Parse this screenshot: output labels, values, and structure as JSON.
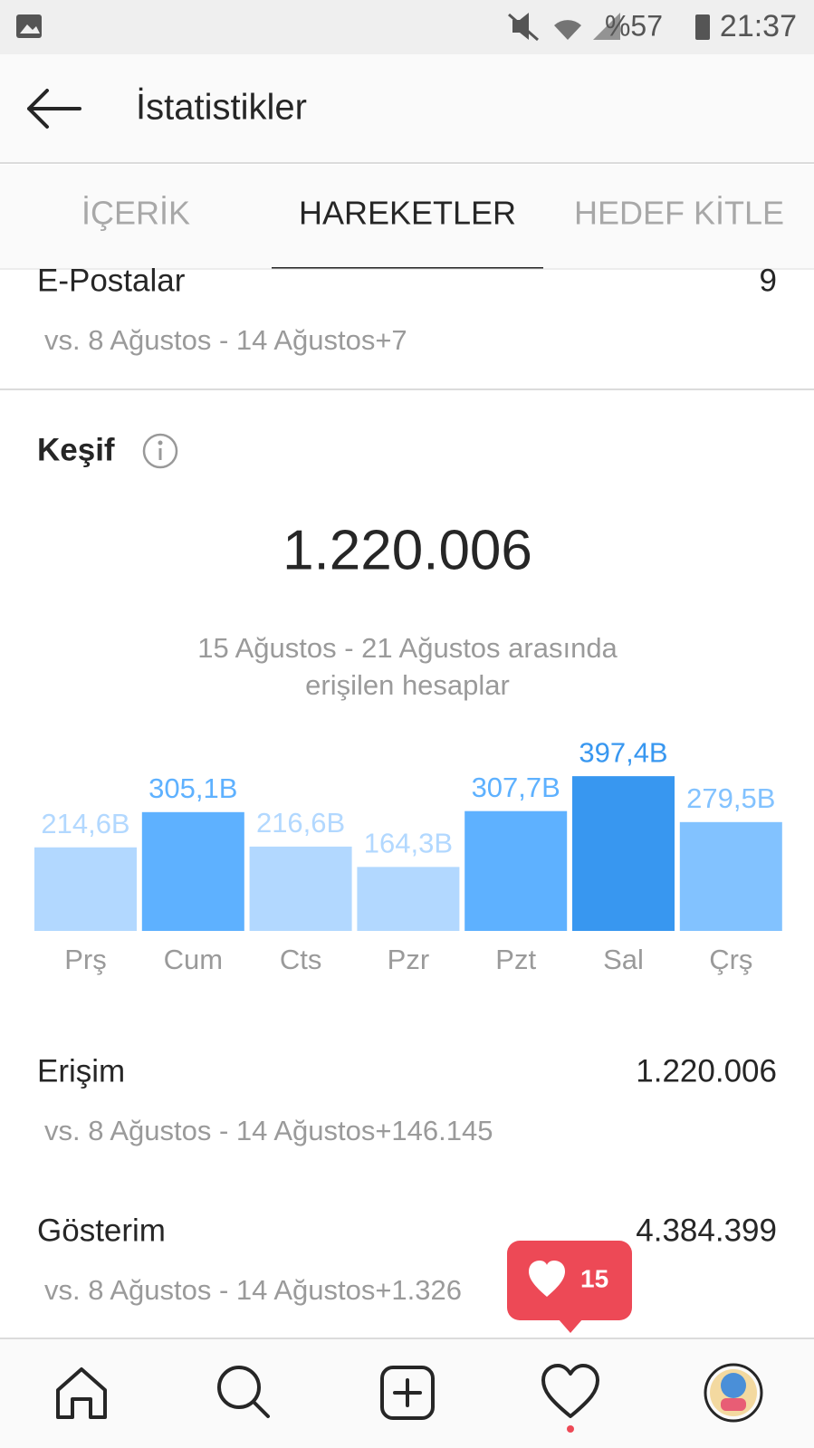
{
  "status_bar": {
    "battery": "%57",
    "time": "21:37"
  },
  "header": {
    "title": "İstatistikler"
  },
  "tabs": [
    "İÇERİK",
    "HAREKETLER",
    "HEDEF KİTLE"
  ],
  "active_tab": 1,
  "email_row": {
    "label": "E-Postalar",
    "value": "9",
    "comparison": "vs. 8 Ağustos - 14 Ağustos+7"
  },
  "discovery": {
    "title": "Keşif",
    "total": "1.220.006",
    "caption_lines": [
      "15 Ağustos - 21 Ağustos arasında",
      "erişilen hesaplar"
    ]
  },
  "chart_data": {
    "type": "bar",
    "categories": [
      "Prş",
      "Cum",
      "Cts",
      "Pzr",
      "Pzt",
      "Sal",
      "Çrş"
    ],
    "values": [
      214.6,
      305.1,
      216.6,
      164.3,
      307.7,
      397.4,
      279.5
    ],
    "value_labels": [
      "214,6B",
      "305,1B",
      "216,6B",
      "164,3B",
      "307,7B",
      "397,4B",
      "279,5B"
    ],
    "colors": [
      "#b2d8ff",
      "#5eb1ff",
      "#b2d8ff",
      "#b2d8ff",
      "#5eb1ff",
      "#3897f0",
      "#82c2ff"
    ]
  },
  "metrics": [
    {
      "label": "Erişim",
      "value": "1.220.006",
      "comparison": "vs. 8 Ağustos - 14 Ağustos+146.145"
    },
    {
      "label": "Gösterim",
      "value": "4.384.399",
      "comparison": "vs. 8 Ağustos - 14 Ağustos+1.326"
    }
  ],
  "notification": {
    "count": "15"
  }
}
